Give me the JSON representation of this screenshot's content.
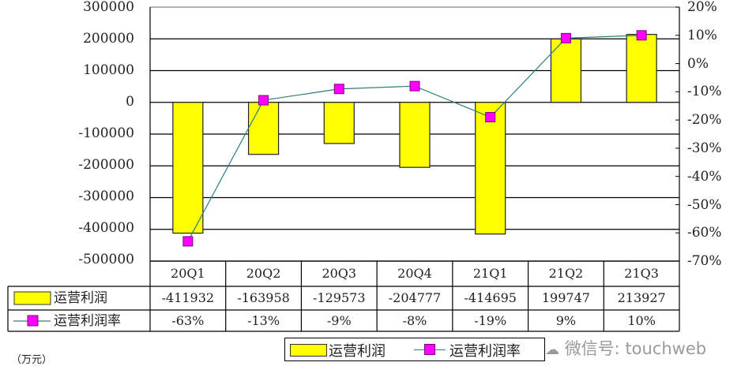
{
  "chart_data": {
    "type": "bar+line",
    "title": "",
    "categories": [
      "20Q1",
      "20Q2",
      "20Q3",
      "20Q4",
      "21Q1",
      "21Q2",
      "21Q3"
    ],
    "series": [
      {
        "name": "运营利润",
        "type": "bar",
        "axis": "left",
        "color": "#FFFF00",
        "values": [
          -411932,
          -163958,
          -129573,
          -204777,
          -414695,
          199747,
          213927
        ]
      },
      {
        "name": "运营利润率",
        "type": "line",
        "axis": "right",
        "color": "#FF00FF",
        "line_color": "#2E7D7D",
        "values": [
          -63,
          -13,
          -9,
          -8,
          -19,
          9,
          10
        ],
        "unit": "%"
      }
    ],
    "left_axis": {
      "ylim": [
        -500000,
        300000
      ],
      "ticks": [
        "300000",
        "200000",
        "100000",
        "0",
        "-100000",
        "-200000",
        "-300000",
        "-400000",
        "-500000"
      ]
    },
    "right_axis": {
      "ylim": [
        -70,
        20
      ],
      "ticks": [
        "20%",
        "10%",
        "0%",
        "-10%",
        "-20%",
        "-30%",
        "-40%",
        "-50%",
        "-60%",
        "-70%"
      ]
    },
    "grid": true,
    "unit_label": "（万元）",
    "legend_position": "bottom"
  },
  "table": {
    "headers": [
      "20Q1",
      "20Q2",
      "20Q3",
      "20Q4",
      "21Q1",
      "21Q2",
      "21Q3"
    ],
    "rows": [
      {
        "label": "运营利润",
        "values": [
          "-411932",
          "-163958",
          "-129573",
          "-204777",
          "-414695",
          "199747",
          "213927"
        ]
      },
      {
        "label": "运营利润率",
        "values": [
          "-63%",
          "-13%",
          "-9%",
          "-8%",
          "-19%",
          "9%",
          "10%"
        ]
      }
    ]
  },
  "legend": {
    "bar_label": "运营利润",
    "line_label": "运营利润率"
  },
  "unit": "（万元）",
  "watermark": "微信号: touchweb"
}
